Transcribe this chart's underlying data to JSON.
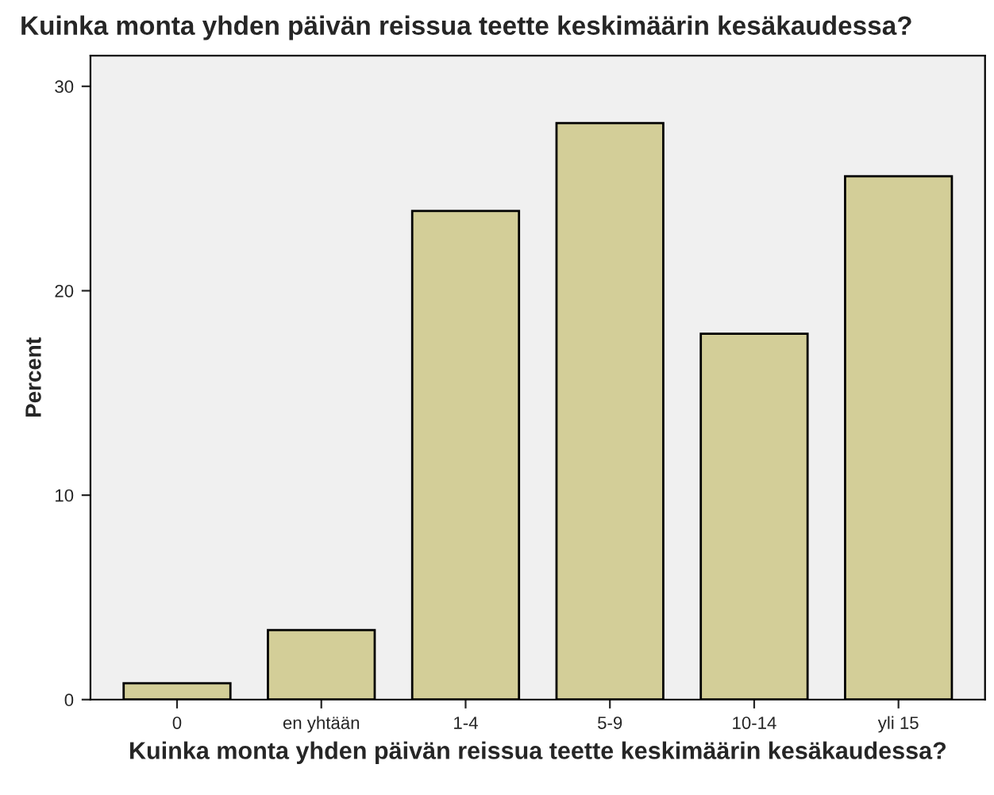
{
  "chart_data": {
    "type": "bar",
    "title": "Kuinka monta yhden päivän reissua teette keskimäärin kesäkaudessa?",
    "xlabel": "Kuinka monta yhden päivän reissua teette keskimäärin kesäkaudessa?",
    "ylabel": "Percent",
    "categories": [
      "0",
      "en yhtään",
      "1-4",
      "5-9",
      "10-14",
      "yli 15"
    ],
    "values": [
      0.8,
      3.4,
      23.9,
      28.2,
      17.9,
      25.6
    ],
    "color": "#d3ce98",
    "ylim": [
      0,
      31.5
    ],
    "yticks": [
      0,
      10,
      20,
      30
    ],
    "grid": false
  }
}
